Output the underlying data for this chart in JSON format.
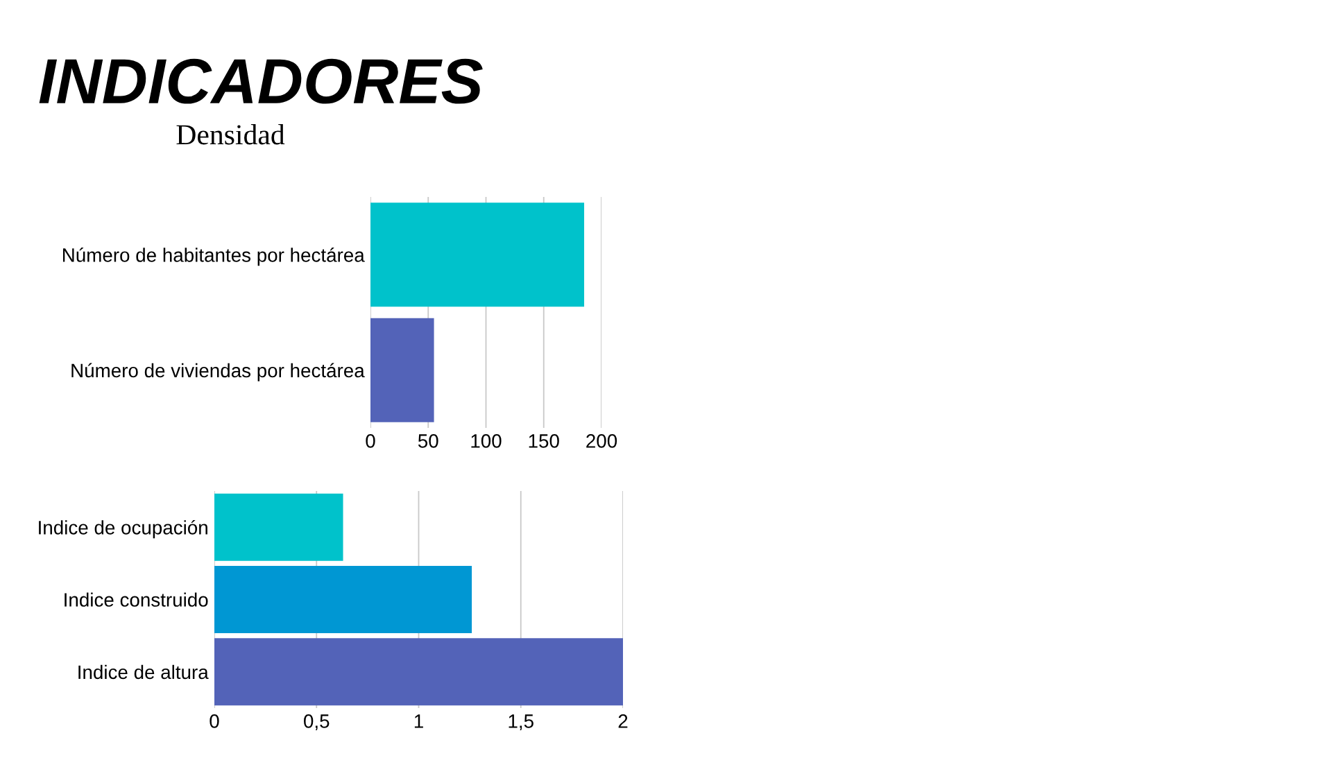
{
  "chart_data": [
    {
      "type": "bar",
      "orientation": "horizontal",
      "title": "INDICADORES",
      "subtitle": "Densidad",
      "categories": [
        "Número de habitantes por hectárea",
        "Número de viviendas por hectárea"
      ],
      "values": [
        185,
        55
      ],
      "colors": [
        "#00c2cb",
        "#5363b8"
      ],
      "xlim": [
        0,
        200
      ],
      "xticks": [
        0,
        50,
        100,
        150,
        200
      ],
      "grid": "x"
    },
    {
      "type": "bar",
      "orientation": "horizontal",
      "categories": [
        "Indice de ocupación",
        "Indice construido",
        "Indice de altura"
      ],
      "values": [
        0.63,
        1.26,
        2.0
      ],
      "colors": [
        "#00c2cb",
        "#0097d3",
        "#5363b8"
      ],
      "xlim": [
        0,
        2
      ],
      "xticks": [
        0,
        {
          "value": 0.5,
          "label": "0,5"
        },
        1,
        {
          "value": 1.5,
          "label": "1,5"
        },
        2
      ],
      "grid": "x"
    }
  ]
}
